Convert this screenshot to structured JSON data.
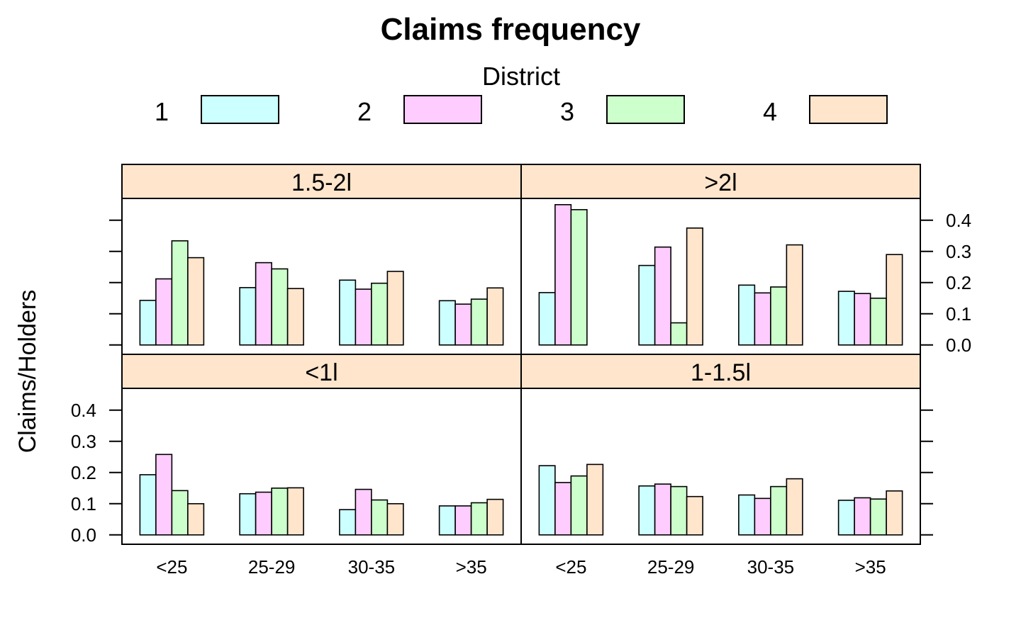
{
  "chart_data": {
    "type": "bar",
    "title": "Claims frequency",
    "ylabel": "Claims/Holders",
    "xlabel": "",
    "legend": {
      "title": "District",
      "placement": "top"
    },
    "ylim": [
      -0.03,
      0.47
    ],
    "yticks": [
      0.0,
      0.1,
      0.2,
      0.3,
      0.4
    ],
    "ytick_labels": [
      "0.0",
      "0.1",
      "0.2",
      "0.3",
      "0.4"
    ],
    "categories": [
      "<25",
      "25-29",
      "30-35",
      ">35"
    ],
    "series_names": [
      "1",
      "2",
      "3",
      "4"
    ],
    "colors": [
      "#ccffff",
      "#ffccff",
      "#ccffcc",
      "#ffe5cc"
    ],
    "strip_color": "#ffe5cc",
    "panels": [
      {
        "label": "<1l",
        "values": [
          [
            0.193,
            0.258,
            0.142,
            0.1
          ],
          [
            0.132,
            0.137,
            0.15,
            0.151
          ],
          [
            0.081,
            0.146,
            0.112,
            0.1
          ],
          [
            0.093,
            0.093,
            0.103,
            0.114
          ]
        ]
      },
      {
        "label": "1-1.5l",
        "values": [
          [
            0.222,
            0.168,
            0.189,
            0.226
          ],
          [
            0.157,
            0.163,
            0.155,
            0.123
          ],
          [
            0.128,
            0.117,
            0.155,
            0.18
          ],
          [
            0.111,
            0.119,
            0.115,
            0.141
          ]
        ]
      },
      {
        "label": "1.5-2l",
        "values": [
          [
            0.143,
            0.212,
            0.334,
            0.28
          ],
          [
            0.184,
            0.264,
            0.244,
            0.181
          ],
          [
            0.208,
            0.179,
            0.198,
            0.236
          ],
          [
            0.142,
            0.131,
            0.147,
            0.183
          ]
        ]
      },
      {
        "label": ">2l",
        "values": [
          [
            0.168,
            0.45,
            0.434,
            0.0
          ],
          [
            0.255,
            0.314,
            0.071,
            0.375
          ],
          [
            0.192,
            0.167,
            0.186,
            0.321
          ],
          [
            0.172,
            0.165,
            0.15,
            0.29
          ]
        ]
      }
    ]
  }
}
